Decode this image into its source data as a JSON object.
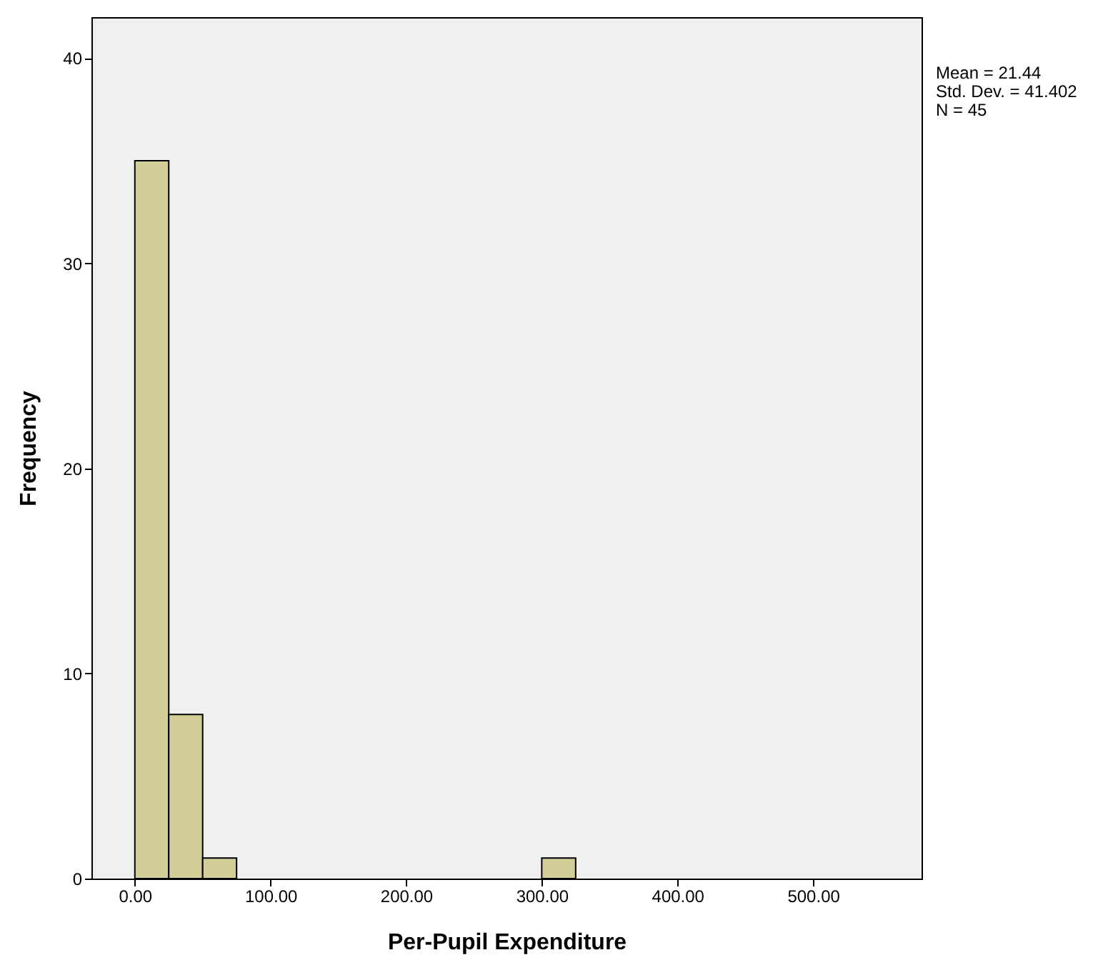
{
  "chart_data": {
    "type": "histogram",
    "xlabel": "Per-Pupil Expenditure",
    "ylabel": "Frequency",
    "annotations": [
      "Mean = 21.44",
      "Std. Dev. = 41.402",
      "N = 45"
    ],
    "bins": [
      0,
      25,
      50,
      75,
      100,
      125,
      150,
      175,
      200,
      225,
      250,
      275,
      300,
      325
    ],
    "values": [
      35,
      8,
      1,
      0,
      0,
      0,
      0,
      0,
      0,
      0,
      0,
      0,
      1
    ],
    "color": "#d3ce97",
    "xlim": [
      -32,
      580
    ],
    "xticks": [
      {
        "value": 0,
        "label": "0.00"
      },
      {
        "value": 100,
        "label": "100.00"
      },
      {
        "value": 200,
        "label": "200.00"
      },
      {
        "value": 300,
        "label": "300.00"
      },
      {
        "value": 400,
        "label": "400.00"
      },
      {
        "value": 500,
        "label": "500.00"
      }
    ],
    "ylim": [
      0,
      42
    ],
    "yticks": [
      0,
      10,
      20,
      30,
      40
    ],
    "grid": false
  }
}
